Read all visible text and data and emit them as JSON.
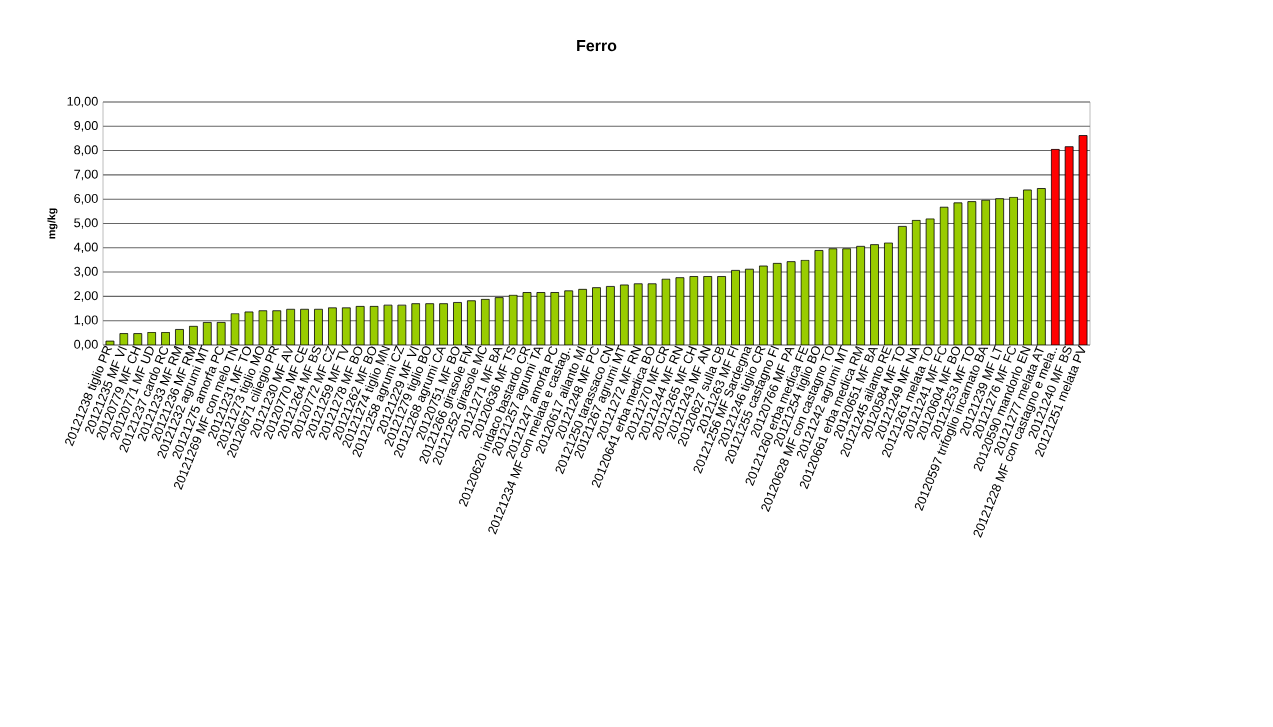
{
  "chart_data": {
    "type": "bar",
    "title": "Ferro",
    "ylabel": "mg/kg",
    "categories": [
      "20121238 tiglio PR",
      "20121235 MF VI",
      "20120779 MF CH",
      "20120771 MF UD",
      "20121237 cardo RC",
      "20121233 MF RM",
      "20121236 MF RM",
      "20121232 agrumi MT",
      "20121275 amorfa PC",
      "20121269 MF con melo TN",
      "20121231 MF TO",
      "20121273 tiglio MO",
      "20120671 ciliegio PR",
      "20121230 MF AV",
      "20120770 MF CE",
      "20121264 MF BS",
      "20120772 MF CZ",
      "20121259 MF TV",
      "20121278 MF BO",
      "20121262 MF BO",
      "20121274 tiglio MN",
      "20121258 agrumi CZ",
      "20121229 MF VI",
      "20121279 tiglio BO",
      "20121268 agrumi CA",
      "20120751 MF BO",
      "20121266 girasole FM",
      "20121252 girasole MC",
      "20121271 MF BA",
      "20120636 MF TS",
      "20120620 indaco bastardo CR",
      "20121257 agrumi TA",
      "20121247 amorfa PC",
      "20121234 MF con melata e castag..",
      "20120617 ailanto MI",
      "20121248 MF PC",
      "20121250 tarassaco CN",
      "20121267 agrumi MT",
      "20121272 MF RN",
      "20120641 erba medica BO",
      "20121270 MF CR",
      "20121244 MF RN",
      "20121265 MF CH",
      "20121243 MF AN",
      "20120627 sulla CB",
      "20121263 MF FI",
      "20121256 MF Sardegna",
      "20121246 tiglio CR",
      "20121255 castagno FI",
      "20120766 MF PA",
      "20121260 erba medica FE",
      "20121254 tiglio BO",
      "20120628 MF con castagno TO",
      "20121242 agrumi MT",
      "20120661 erba medica RM",
      "20120651 MF BA",
      "20121245 ailanto RE",
      "20120584 MF TO",
      "20121249 MF NA",
      "20121261 melata TO",
      "20121241 MF FC",
      "20120604 MF BO",
      "20121253 MF TO",
      "20120597 trifoglio incarnato BA",
      "20121239 MF LT",
      "20121276 MF FC",
      "20120590 mandorlo EN",
      "20121277 melata AT",
      "20121228 MF con castagno e mela..",
      "20121240 MF BS",
      "20121251 melata PV"
    ],
    "values": [
      0.16,
      0.47,
      0.47,
      0.52,
      0.52,
      0.64,
      0.77,
      0.93,
      0.93,
      1.29,
      1.36,
      1.41,
      1.41,
      1.47,
      1.47,
      1.47,
      1.53,
      1.53,
      1.59,
      1.59,
      1.64,
      1.64,
      1.7,
      1.7,
      1.7,
      1.75,
      1.82,
      1.88,
      1.95,
      2.05,
      2.16,
      2.16,
      2.16,
      2.23,
      2.29,
      2.36,
      2.41,
      2.47,
      2.52,
      2.52,
      2.71,
      2.77,
      2.82,
      2.82,
      2.82,
      3.07,
      3.12,
      3.25,
      3.36,
      3.43,
      3.49,
      3.89,
      3.96,
      3.96,
      4.06,
      4.13,
      4.2,
      4.88,
      5.13,
      5.19,
      5.67,
      5.85,
      5.9,
      5.96,
      6.02,
      6.08,
      6.38,
      6.44,
      8.05,
      8.16,
      8.62
    ],
    "colors": [
      "#99cc00",
      "#99cc00",
      "#99cc00",
      "#99cc00",
      "#99cc00",
      "#99cc00",
      "#99cc00",
      "#99cc00",
      "#99cc00",
      "#99cc00",
      "#99cc00",
      "#99cc00",
      "#99cc00",
      "#99cc00",
      "#99cc00",
      "#99cc00",
      "#99cc00",
      "#99cc00",
      "#99cc00",
      "#99cc00",
      "#99cc00",
      "#99cc00",
      "#99cc00",
      "#99cc00",
      "#99cc00",
      "#99cc00",
      "#99cc00",
      "#99cc00",
      "#99cc00",
      "#99cc00",
      "#99cc00",
      "#99cc00",
      "#99cc00",
      "#99cc00",
      "#99cc00",
      "#99cc00",
      "#99cc00",
      "#99cc00",
      "#99cc00",
      "#99cc00",
      "#99cc00",
      "#99cc00",
      "#99cc00",
      "#99cc00",
      "#99cc00",
      "#99cc00",
      "#99cc00",
      "#99cc00",
      "#99cc00",
      "#99cc00",
      "#99cc00",
      "#99cc00",
      "#99cc00",
      "#99cc00",
      "#99cc00",
      "#99cc00",
      "#99cc00",
      "#99cc00",
      "#99cc00",
      "#99cc00",
      "#99cc00",
      "#99cc00",
      "#99cc00",
      "#99cc00",
      "#99cc00",
      "#99cc00",
      "#99cc00",
      "#99cc00",
      "#ff0000",
      "#ff0000",
      "#ff0000"
    ],
    "ylim": [
      0,
      10
    ],
    "yticks": [
      {
        "value": 0,
        "label": "0,00"
      },
      {
        "value": 1,
        "label": "1,00"
      },
      {
        "value": 2,
        "label": "2,00"
      },
      {
        "value": 3,
        "label": "3,00"
      },
      {
        "value": 4,
        "label": "4,00"
      },
      {
        "value": 5,
        "label": "5,00"
      },
      {
        "value": 6,
        "label": "6,00"
      },
      {
        "value": 7,
        "label": "7,00"
      },
      {
        "value": 8,
        "label": "8,00"
      },
      {
        "value": 9,
        "label": "9,00"
      },
      {
        "value": 10,
        "label": "10,00"
      }
    ],
    "grid": "y"
  }
}
